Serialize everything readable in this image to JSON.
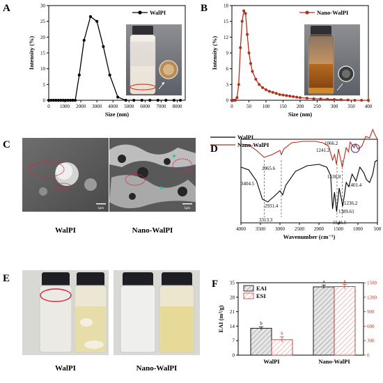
{
  "panels": {
    "a": "A",
    "b": "B",
    "c": "C",
    "d": "D",
    "e": "E",
    "f": "F"
  },
  "chart_data": [
    {
      "panel": "A",
      "type": "line",
      "xlabel": "Size (nm)",
      "ylabel": "Intensity (%)",
      "xlim": [
        0,
        8500
      ],
      "ylim": [
        0,
        30
      ],
      "xticks": [
        "0",
        "1000",
        "2000",
        "3000",
        "4000",
        "5000",
        "6000",
        "7000",
        "8000"
      ],
      "yticks": [
        "0",
        "5",
        "10",
        "15",
        "20",
        "25",
        "30"
      ],
      "legend": "WalPI",
      "series": [
        {
          "name": "WalPI",
          "color": "#000000",
          "x": [
            0,
            150,
            300,
            450,
            600,
            750,
            900,
            1050,
            1200,
            1350,
            1500,
            1650,
            1900,
            2200,
            2600,
            3000,
            3400,
            3800,
            4300,
            4800,
            5300,
            5800,
            6300,
            6800,
            7300,
            7800,
            8200
          ],
          "y": [
            0,
            0,
            0,
            0,
            0,
            0,
            0,
            0,
            0,
            0,
            0,
            0,
            8,
            19,
            26.5,
            25,
            17,
            8,
            1,
            0,
            0,
            0,
            0,
            0,
            0,
            0,
            0
          ]
        }
      ]
    },
    {
      "panel": "B",
      "type": "line",
      "xlabel": "Size (nm)",
      "ylabel": "Intensity (%)",
      "xlim": [
        0,
        400
      ],
      "ylim": [
        0,
        18
      ],
      "xticks": [
        "0",
        "50",
        "100",
        "150",
        "200",
        "250",
        "300",
        "350",
        "400"
      ],
      "yticks": [
        "0",
        "3",
        "6",
        "9",
        "12",
        "15",
        "18"
      ],
      "legend": "Nano-WalPI",
      "series": [
        {
          "name": "Nano-WalPI",
          "color": "#b0301c",
          "x": [
            0,
            5,
            10,
            15,
            20,
            25,
            30,
            35,
            40,
            45,
            50,
            55,
            60,
            70,
            80,
            90,
            100,
            110,
            120,
            130,
            140,
            150,
            160,
            170,
            180,
            190,
            200,
            220,
            240,
            260,
            280,
            300,
            320,
            340,
            360,
            380,
            400
          ],
          "y": [
            0,
            0,
            0,
            0.5,
            3,
            10,
            15,
            17,
            16.5,
            12.5,
            9,
            7,
            5.5,
            4,
            3,
            2.4,
            2,
            1.7,
            1.5,
            1.3,
            1.1,
            1,
            0.9,
            0.8,
            0.7,
            0.6,
            0.5,
            0.4,
            0.3,
            0.25,
            0.2,
            0.15,
            0.1,
            0.05,
            0,
            0,
            0
          ]
        }
      ]
    },
    {
      "panel": "D",
      "type": "line",
      "xlabel": "Wavenumber (cm⁻¹)",
      "xlim": [
        4000,
        500
      ],
      "xticks": [
        "4000",
        "3500",
        "3000",
        "2500",
        "2000",
        "1500",
        "1000",
        "500"
      ],
      "series": [
        {
          "name": "WalPI",
          "color": "#000000"
        },
        {
          "name": "Nano-WalPI",
          "color": "#b0301c"
        }
      ],
      "annotations": [
        "3404.5",
        "2965.6",
        "1241.2",
        "1066.2",
        "1536.8",
        "1401.4",
        "1236.2",
        "3313.3",
        "2931.4",
        "1546.5",
        "1389.61"
      ]
    },
    {
      "panel": "F",
      "type": "bar",
      "categories": [
        "WalPI",
        "Nano-WalPI"
      ],
      "ylabel": "EAI (m²/g)",
      "y2label": "ESI (min)",
      "ylim": [
        0,
        35
      ],
      "y2lim": [
        0,
        1500
      ],
      "yticks": [
        "0",
        "7",
        "14",
        "21",
        "28",
        "35"
      ],
      "y2ticks": [
        "0",
        "300",
        "600",
        "900",
        "1200",
        "1500"
      ],
      "series": [
        {
          "name": "EAI",
          "axis": "left",
          "values": [
            13,
            33
          ],
          "errors": [
            0.3,
            0.5
          ],
          "letters": [
            "b",
            "a"
          ]
        },
        {
          "name": "ESI",
          "axis": "right",
          "values": [
            320,
            1420
          ],
          "errors": [
            40,
            30
          ],
          "letters": [
            "b",
            "a"
          ]
        }
      ]
    }
  ],
  "panel_c": {
    "left_caption": "WalPI",
    "right_caption": "Nano-WalPI",
    "scale_left": "1μm",
    "scale_right": "1μm"
  },
  "panel_e": {
    "left_caption": "WalPI",
    "right_caption": "Nano-WalPI"
  }
}
